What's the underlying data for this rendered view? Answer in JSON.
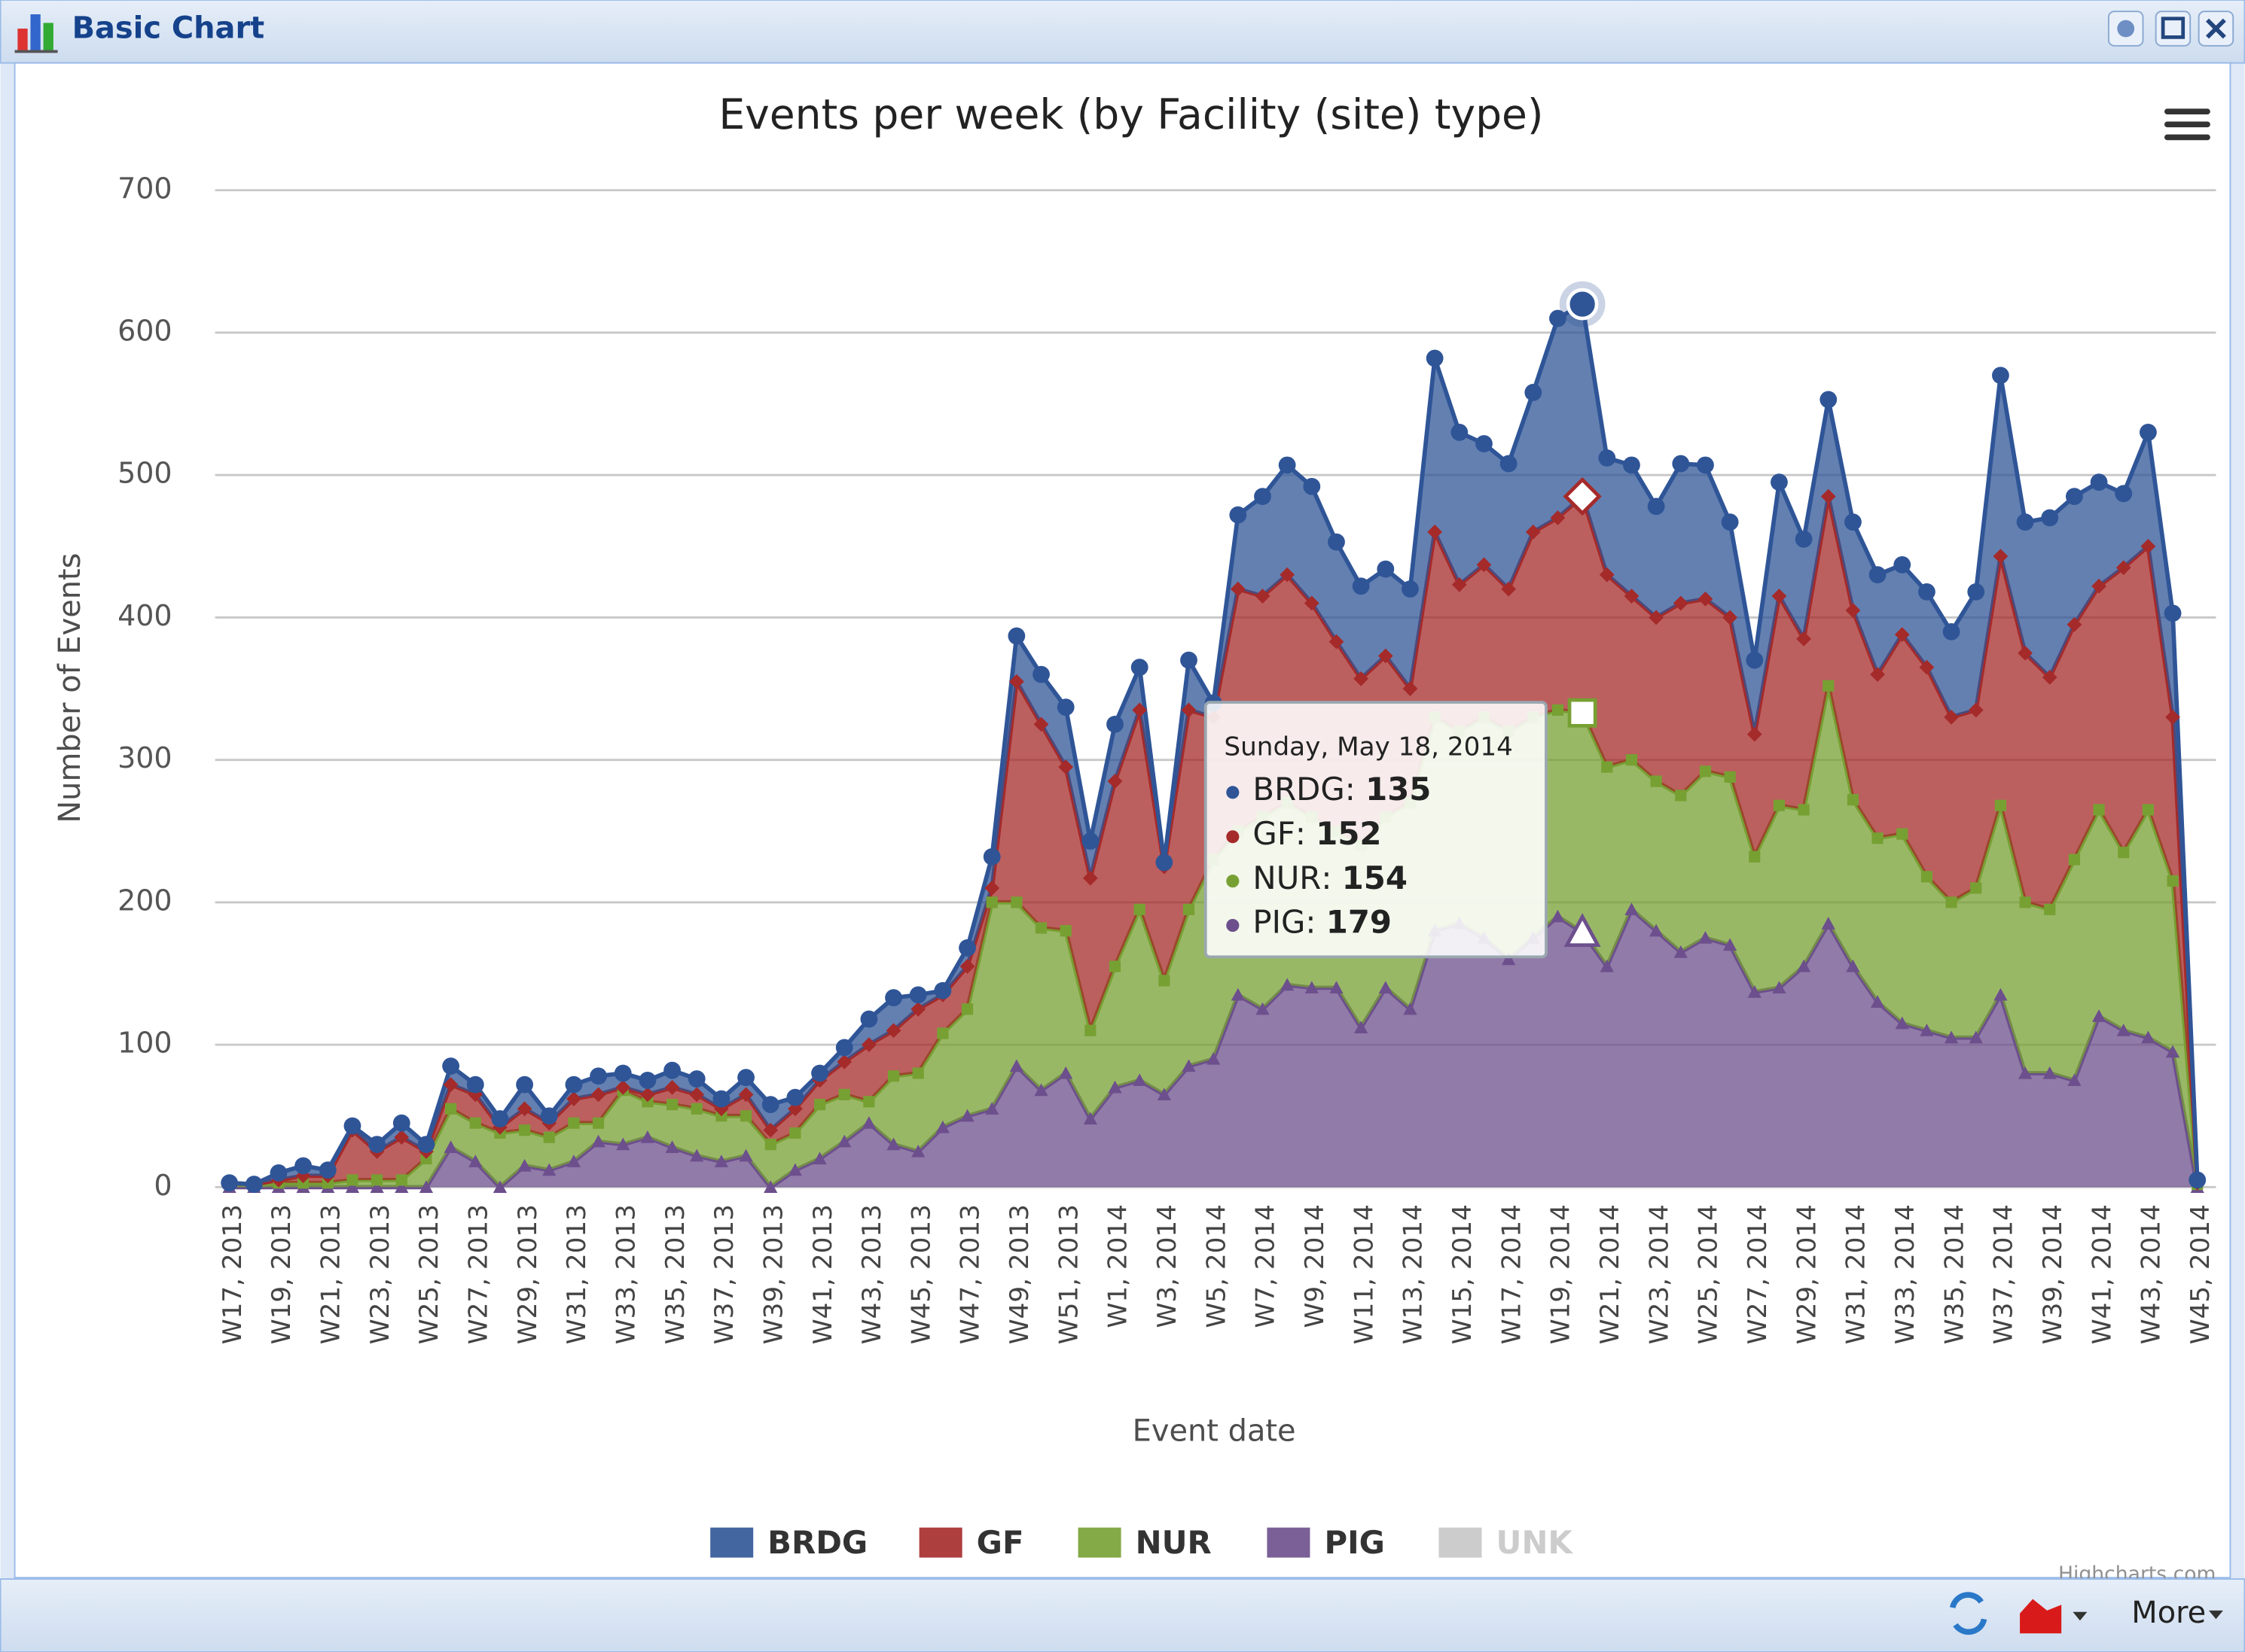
{
  "window": {
    "title": "Basic Chart"
  },
  "toolbar": {
    "more": "More"
  },
  "credits": "Highcharts.com",
  "chart_data": {
    "type": "stacked-area",
    "title": "Events per week (by Facility (site) type)",
    "x_label": "Event date",
    "y_label": "Number of Events",
    "categories": [
      "W17, 2013",
      null,
      "W19, 2013",
      null,
      "W21, 2013",
      null,
      "W23, 2013",
      null,
      "W25, 2013",
      null,
      "W27, 2013",
      null,
      "W29, 2013",
      null,
      "W31, 2013",
      null,
      "W33, 2013",
      null,
      "W35, 2013",
      null,
      "W37, 2013",
      null,
      "W39, 2013",
      null,
      "W41, 2013",
      null,
      "W43, 2013",
      null,
      "W45, 2013",
      null,
      "W47, 2013",
      null,
      "W49, 2013",
      null,
      "W51, 2013",
      null,
      "W1, 2014",
      null,
      "W3, 2014",
      null,
      "W5, 2014",
      null,
      "W7, 2014",
      null,
      "W9, 2014",
      null,
      "W11, 2014",
      null,
      "W13, 2014",
      null,
      "W15, 2014",
      null,
      "W17, 2014",
      null,
      "W19, 2014",
      null,
      "W21, 2014",
      null,
      "W23, 2014",
      null,
      "W25, 2014",
      null,
      "W27, 2014",
      null,
      "W29, 2014",
      null,
      "W31, 2014",
      null,
      "W33, 2014",
      null,
      "W35, 2014",
      null,
      "W37, 2014",
      null,
      "W39, 2014",
      null,
      "W41, 2014",
      null,
      "W43, 2014",
      null,
      "W45, 2014"
    ],
    "series": [
      {
        "name": "BRDG",
        "color": "#2f5597",
        "marker": "circle",
        "values": [
          0,
          0,
          5,
          7,
          4,
          3,
          5,
          10,
          5,
          13,
          7,
          6,
          17,
          5,
          10,
          13,
          10,
          10,
          12,
          11,
          7,
          12,
          18,
          8,
          5,
          10,
          18,
          23,
          10,
          3,
          13,
          22,
          32,
          35,
          42,
          26,
          40,
          30,
          3,
          35,
          10,
          52,
          70,
          77,
          82,
          70,
          65,
          61,
          70,
          122,
          107,
          85,
          88,
          98,
          140,
          135,
          82,
          92,
          78,
          98,
          94,
          67,
          52,
          80,
          70,
          68,
          62,
          70,
          49,
          53,
          60,
          83,
          127,
          92,
          112,
          90,
          73,
          52,
          80,
          73,
          2
        ]
      },
      {
        "name": "GF",
        "color": "#a52a2a",
        "marker": "diamond",
        "values": [
          0,
          0,
          2,
          5,
          5,
          35,
          20,
          30,
          5,
          17,
          20,
          4,
          15,
          10,
          17,
          20,
          2,
          5,
          12,
          10,
          5,
          15,
          10,
          17,
          17,
          23,
          40,
          32,
          45,
          27,
          30,
          10,
          155,
          143,
          115,
          107,
          130,
          140,
          80,
          140,
          100,
          170,
          155,
          160,
          150,
          133,
          117,
          113,
          80,
          130,
          103,
          107,
          100,
          130,
          135,
          152,
          135,
          115,
          115,
          135,
          121,
          112,
          86,
          147,
          120,
          133,
          133,
          115,
          140,
          147,
          130,
          125,
          175,
          175,
          163,
          165,
          157,
          200,
          185,
          115,
          1
        ]
      },
      {
        "name": "NUR",
        "color": "#77a033",
        "marker": "square",
        "values": [
          3,
          2,
          3,
          3,
          3,
          5,
          5,
          5,
          20,
          27,
          27,
          38,
          25,
          23,
          27,
          13,
          38,
          25,
          30,
          33,
          32,
          28,
          30,
          26,
          38,
          33,
          15,
          48,
          55,
          66,
          75,
          145,
          115,
          114,
          100,
          62,
          85,
          120,
          80,
          110,
          140,
          115,
          135,
          128,
          120,
          110,
          128,
          120,
          145,
          150,
          135,
          155,
          160,
          155,
          145,
          154,
          140,
          105,
          105,
          110,
          117,
          118,
          95,
          128,
          110,
          167,
          117,
          115,
          133,
          108,
          95,
          105,
          133,
          120,
          115,
          155,
          145,
          125,
          160,
          120,
          2
        ]
      },
      {
        "name": "PIG",
        "color": "#6c4f8c",
        "marker": "triangle",
        "values": [
          0,
          0,
          0,
          0,
          0,
          0,
          0,
          0,
          0,
          28,
          18,
          0,
          15,
          12,
          18,
          32,
          30,
          35,
          28,
          22,
          18,
          22,
          0,
          12,
          20,
          32,
          45,
          30,
          25,
          42,
          50,
          55,
          85,
          68,
          80,
          48,
          70,
          75,
          65,
          85,
          90,
          135,
          125,
          142,
          140,
          140,
          112,
          140,
          125,
          180,
          185,
          175,
          160,
          175,
          190,
          179,
          155,
          195,
          180,
          165,
          175,
          170,
          137,
          140,
          155,
          185,
          155,
          130,
          115,
          110,
          105,
          105,
          135,
          80,
          80,
          75,
          120,
          110,
          105,
          95,
          0
        ]
      },
      {
        "name": "UNK",
        "color": "#cccccc",
        "visible": false
      }
    ],
    "ylim": [
      0,
      700
    ],
    "yticks": [
      0,
      100,
      200,
      300,
      400,
      500,
      600,
      700
    ],
    "grid": true,
    "legend": "bottom",
    "tooltip": {
      "title": "Sunday, May 18, 2014",
      "point": 55,
      "separator": ": "
    }
  }
}
